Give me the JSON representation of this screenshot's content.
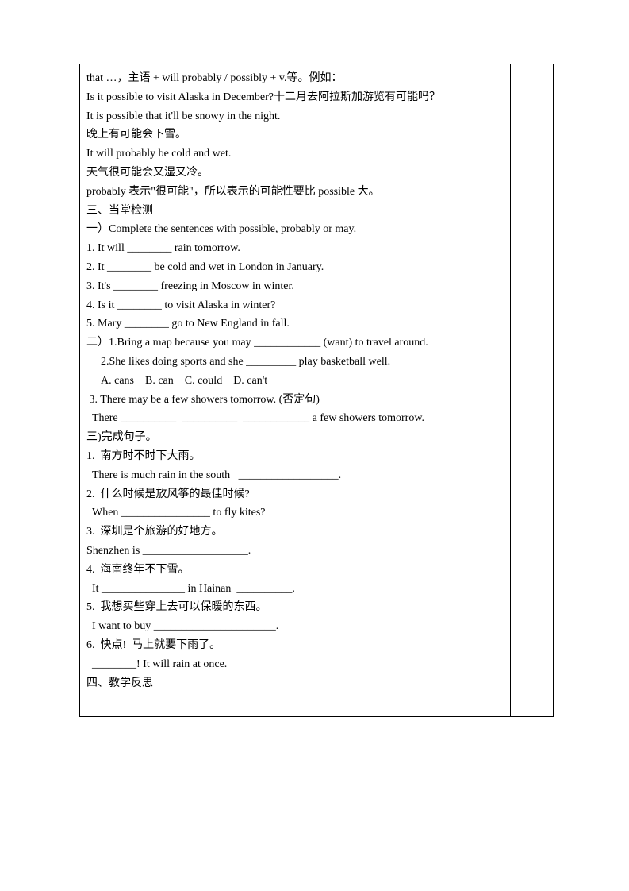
{
  "lines": [
    {
      "text": "that …，主语 + will probably / possibly + v.等。例如：",
      "class": ""
    },
    {
      "text": "Is it possible to visit Alaska in December?十二月去阿拉斯加游览有可能吗？",
      "class": ""
    },
    {
      "text": "It is possible that it'll be snowy in the night.",
      "class": ""
    },
    {
      "text": "晚上有可能会下雪。",
      "class": ""
    },
    {
      "text": "It will probably be cold and wet.",
      "class": ""
    },
    {
      "text": "天气很可能会又湿又冷。",
      "class": ""
    },
    {
      "text": "probably 表示\"很可能\"，所以表示的可能性要比 possible 大。",
      "class": ""
    },
    {
      "text": "三、当堂检测",
      "class": ""
    },
    {
      "text": "一）Complete the sentences with possible, probably or may.",
      "class": ""
    },
    {
      "text": "1. It will ________ rain tomorrow.",
      "class": ""
    },
    {
      "text": "2. It ________ be cold and wet in London in January.",
      "class": ""
    },
    {
      "text": "3. It's ________ freezing in Moscow in winter.",
      "class": ""
    },
    {
      "text": "4. Is it ________ to visit Alaska in winter?",
      "class": ""
    },
    {
      "text": "5. Mary ________ go to New England in fall.",
      "class": ""
    },
    {
      "text": "二）1.Bring a map because you may ____________ (want) to travel around.",
      "class": ""
    },
    {
      "text": "2.She likes doing sports and she _________ play basketball well.",
      "class": "indent"
    },
    {
      "text": "A. cans    B. can    C. could    D. can't",
      "class": "indent"
    },
    {
      "text": " 3. There may be a few showers tomorrow. (否定句)",
      "class": ""
    },
    {
      "text": "  There __________  __________  ____________ a few showers tomorrow.",
      "class": ""
    },
    {
      "text": "三)完成句子。",
      "class": ""
    },
    {
      "text": "1.  南方时不时下大雨。",
      "class": ""
    },
    {
      "text": "  There is much rain in the south   __________________.",
      "class": ""
    },
    {
      "text": "2.  什么时候是放风筝的最佳时候?",
      "class": ""
    },
    {
      "text": "  When ________________ to fly kites?",
      "class": ""
    },
    {
      "text": "3.  深圳是个旅游的好地方。",
      "class": ""
    },
    {
      "text": "Shenzhen is ___________________.",
      "class": ""
    },
    {
      "text": "4.  海南终年不下雪。",
      "class": ""
    },
    {
      "text": "  It _______________ in Hainan  __________.",
      "class": ""
    },
    {
      "text": "5.  我想买些穿上去可以保暖的东西。",
      "class": ""
    },
    {
      "text": "  I want to buy ______________________.",
      "class": ""
    },
    {
      "text": "6.  快点!  马上就要下雨了。",
      "class": ""
    },
    {
      "text": "  ________! It will rain at once.",
      "class": ""
    },
    {
      "text": "四、教学反思",
      "class": ""
    },
    {
      "text": " ",
      "class": ""
    }
  ]
}
